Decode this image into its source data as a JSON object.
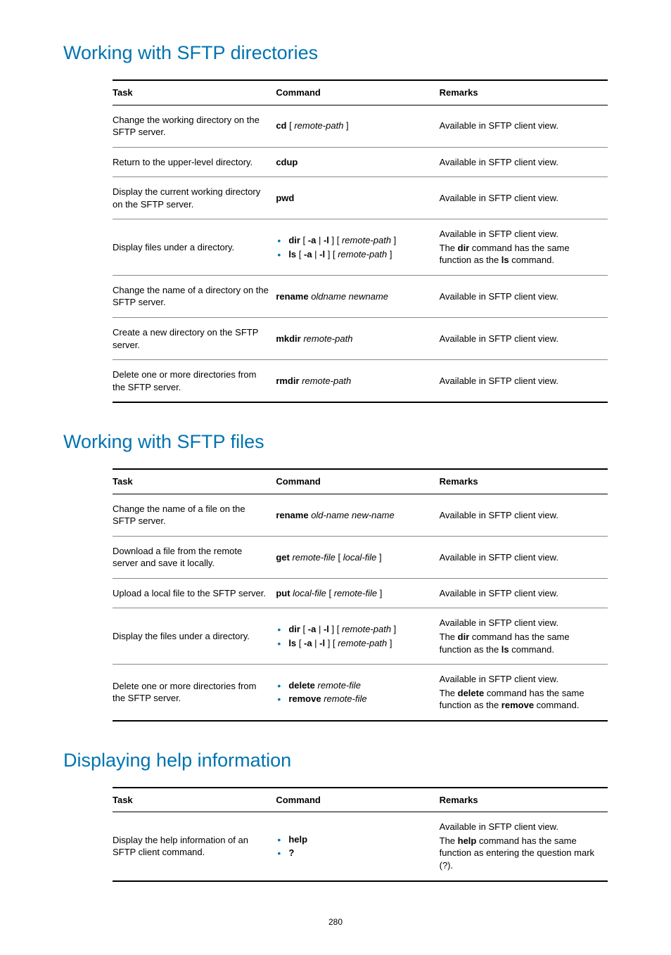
{
  "page_number": "280",
  "sections": [
    {
      "id": "s1",
      "heading": "Working with SFTP directories",
      "headers": [
        "Task",
        "Command",
        "Remarks"
      ],
      "rows": [
        {
          "task": [
            {
              "t": "plain",
              "v": "Change the working directory on the SFTP server."
            }
          ],
          "command": [
            {
              "t": "cmd",
              "segs": [
                {
                  "b": true,
                  "v": "cd"
                },
                {
                  "b": false,
                  "v": " [ "
                },
                {
                  "i": true,
                  "v": "remote-path"
                },
                {
                  "b": false,
                  "v": " ]"
                }
              ]
            }
          ],
          "remarks": [
            {
              "t": "plain",
              "v": "Available in SFTP client view."
            }
          ]
        },
        {
          "task": [
            {
              "t": "plain",
              "v": "Return to the upper-level directory."
            }
          ],
          "command": [
            {
              "t": "cmd",
              "segs": [
                {
                  "b": true,
                  "v": "cdup"
                }
              ]
            }
          ],
          "remarks": [
            {
              "t": "plain",
              "v": "Available in SFTP client view."
            }
          ]
        },
        {
          "task": [
            {
              "t": "plain",
              "v": "Display the current working directory on the SFTP server."
            }
          ],
          "command": [
            {
              "t": "cmd",
              "segs": [
                {
                  "b": true,
                  "v": "pwd"
                }
              ]
            }
          ],
          "remarks": [
            {
              "t": "plain",
              "v": "Available in SFTP client view."
            }
          ]
        },
        {
          "task": [
            {
              "t": "plain",
              "v": "Display files under a directory."
            }
          ],
          "command": [
            {
              "t": "bullets",
              "items": [
                {
                  "segs": [
                    {
                      "b": true,
                      "v": "dir"
                    },
                    {
                      "b": false,
                      "v": " [ "
                    },
                    {
                      "b": true,
                      "v": "-a"
                    },
                    {
                      "b": false,
                      "v": " | "
                    },
                    {
                      "b": true,
                      "v": "-l"
                    },
                    {
                      "b": false,
                      "v": " ] [ "
                    },
                    {
                      "i": true,
                      "v": "remote-path"
                    },
                    {
                      "b": false,
                      "v": " ]"
                    }
                  ]
                },
                {
                  "segs": [
                    {
                      "b": true,
                      "v": "ls"
                    },
                    {
                      "b": false,
                      "v": " [ "
                    },
                    {
                      "b": true,
                      "v": "-a"
                    },
                    {
                      "b": false,
                      "v": " | "
                    },
                    {
                      "b": true,
                      "v": "-l"
                    },
                    {
                      "b": false,
                      "v": " ] [ "
                    },
                    {
                      "i": true,
                      "v": "remote-path"
                    },
                    {
                      "b": false,
                      "v": " ]"
                    }
                  ]
                }
              ]
            }
          ],
          "remarks": [
            {
              "t": "plain",
              "v": "Available in SFTP client view."
            },
            {
              "t": "rich",
              "segs": [
                {
                  "v": "The "
                },
                {
                  "b": true,
                  "v": "dir"
                },
                {
                  "v": " command has the same function as the "
                },
                {
                  "b": true,
                  "v": "ls"
                },
                {
                  "v": " command."
                }
              ]
            }
          ]
        },
        {
          "task": [
            {
              "t": "plain",
              "v": "Change the name of a directory on the SFTP server."
            }
          ],
          "command": [
            {
              "t": "cmd",
              "segs": [
                {
                  "b": true,
                  "v": "rename"
                },
                {
                  "b": false,
                  "v": " "
                },
                {
                  "i": true,
                  "v": "oldname newname"
                }
              ]
            }
          ],
          "remarks": [
            {
              "t": "plain",
              "v": "Available in SFTP client view."
            }
          ]
        },
        {
          "task": [
            {
              "t": "plain",
              "v": "Create a new directory on the SFTP server."
            }
          ],
          "command": [
            {
              "t": "cmd",
              "segs": [
                {
                  "b": true,
                  "v": "mkdir"
                },
                {
                  "b": false,
                  "v": " "
                },
                {
                  "i": true,
                  "v": "remote-path"
                }
              ]
            }
          ],
          "remarks": [
            {
              "t": "plain",
              "v": "Available in SFTP client view."
            }
          ]
        },
        {
          "task": [
            {
              "t": "plain",
              "v": "Delete one or more directories from the SFTP server."
            }
          ],
          "command": [
            {
              "t": "cmd",
              "segs": [
                {
                  "b": true,
                  "v": "rmdir"
                },
                {
                  "b": false,
                  "v": " "
                },
                {
                  "i": true,
                  "v": "remote-path"
                }
              ]
            }
          ],
          "remarks": [
            {
              "t": "plain",
              "v": "Available in SFTP client view."
            }
          ]
        }
      ]
    },
    {
      "id": "s2",
      "heading": "Working with SFTP files",
      "headers": [
        "Task",
        "Command",
        "Remarks"
      ],
      "rows": [
        {
          "task": [
            {
              "t": "plain",
              "v": "Change the name of a file on the SFTP server."
            }
          ],
          "command": [
            {
              "t": "cmd",
              "segs": [
                {
                  "b": true,
                  "v": "rename"
                },
                {
                  "b": false,
                  "v": " "
                },
                {
                  "i": true,
                  "v": "old-name new-name"
                }
              ]
            }
          ],
          "remarks": [
            {
              "t": "plain",
              "v": "Available in SFTP client view."
            }
          ]
        },
        {
          "task": [
            {
              "t": "plain",
              "v": "Download a file from the remote server and save it locally."
            }
          ],
          "command": [
            {
              "t": "cmd",
              "segs": [
                {
                  "b": true,
                  "v": "get"
                },
                {
                  "b": false,
                  "v": " "
                },
                {
                  "i": true,
                  "v": "remote-file"
                },
                {
                  "b": false,
                  "v": " [ "
                },
                {
                  "i": true,
                  "v": "local-file"
                },
                {
                  "b": false,
                  "v": " ]"
                }
              ]
            }
          ],
          "remarks": [
            {
              "t": "plain",
              "v": "Available in SFTP client view."
            }
          ]
        },
        {
          "task": [
            {
              "t": "plain",
              "v": "Upload a local file to the SFTP server."
            }
          ],
          "command": [
            {
              "t": "cmd",
              "segs": [
                {
                  "b": true,
                  "v": "put"
                },
                {
                  "b": false,
                  "v": " "
                },
                {
                  "i": true,
                  "v": "local-file"
                },
                {
                  "b": false,
                  "v": " [ "
                },
                {
                  "i": true,
                  "v": "remote-file"
                },
                {
                  "b": false,
                  "v": " ]"
                }
              ]
            }
          ],
          "remarks": [
            {
              "t": "plain",
              "v": "Available in SFTP client view."
            }
          ]
        },
        {
          "task": [
            {
              "t": "plain",
              "v": "Display the files under a directory."
            }
          ],
          "command": [
            {
              "t": "bullets",
              "items": [
                {
                  "segs": [
                    {
                      "b": true,
                      "v": "dir"
                    },
                    {
                      "b": false,
                      "v": " [ "
                    },
                    {
                      "b": true,
                      "v": "-a"
                    },
                    {
                      "b": false,
                      "v": " | "
                    },
                    {
                      "b": true,
                      "v": "-l"
                    },
                    {
                      "b": false,
                      "v": " ] [ "
                    },
                    {
                      "i": true,
                      "v": "remote-path"
                    },
                    {
                      "b": false,
                      "v": " ]"
                    }
                  ]
                },
                {
                  "segs": [
                    {
                      "b": true,
                      "v": "ls"
                    },
                    {
                      "b": false,
                      "v": " [ "
                    },
                    {
                      "b": true,
                      "v": "-a"
                    },
                    {
                      "b": false,
                      "v": " | "
                    },
                    {
                      "b": true,
                      "v": "-l"
                    },
                    {
                      "b": false,
                      "v": " ] [ "
                    },
                    {
                      "i": true,
                      "v": "remote-path"
                    },
                    {
                      "b": false,
                      "v": " ]"
                    }
                  ]
                }
              ]
            }
          ],
          "remarks": [
            {
              "t": "plain",
              "v": "Available in SFTP client view."
            },
            {
              "t": "rich",
              "segs": [
                {
                  "v": "The "
                },
                {
                  "b": true,
                  "v": "dir"
                },
                {
                  "v": " command has the same function as the "
                },
                {
                  "b": true,
                  "v": "ls"
                },
                {
                  "v": " command."
                }
              ]
            }
          ]
        },
        {
          "task": [
            {
              "t": "plain",
              "v": "Delete one or more directories from the SFTP server."
            }
          ],
          "command": [
            {
              "t": "bullets",
              "items": [
                {
                  "segs": [
                    {
                      "b": true,
                      "v": "delete"
                    },
                    {
                      "b": false,
                      "v": " "
                    },
                    {
                      "i": true,
                      "v": "remote-file"
                    }
                  ]
                },
                {
                  "segs": [
                    {
                      "b": true,
                      "v": "remove"
                    },
                    {
                      "b": false,
                      "v": " "
                    },
                    {
                      "i": true,
                      "v": "remote-file"
                    }
                  ]
                }
              ]
            }
          ],
          "remarks": [
            {
              "t": "plain",
              "v": "Available in SFTP client view."
            },
            {
              "t": "rich",
              "segs": [
                {
                  "v": "The "
                },
                {
                  "b": true,
                  "v": "delete"
                },
                {
                  "v": " command has the same function as the "
                },
                {
                  "b": true,
                  "v": "remove"
                },
                {
                  "v": " command."
                }
              ]
            }
          ]
        }
      ]
    },
    {
      "id": "s3",
      "heading": "Displaying help information",
      "headers": [
        "Task",
        "Command",
        "Remarks"
      ],
      "rows": [
        {
          "task": [
            {
              "t": "plain",
              "v": "Display the help information of an SFTP client command."
            }
          ],
          "command": [
            {
              "t": "bullets",
              "items": [
                {
                  "segs": [
                    {
                      "b": true,
                      "v": "help"
                    }
                  ]
                },
                {
                  "segs": [
                    {
                      "b": true,
                      "v": "?"
                    }
                  ]
                }
              ]
            }
          ],
          "remarks": [
            {
              "t": "plain",
              "v": "Available in SFTP client view."
            },
            {
              "t": "rich",
              "segs": [
                {
                  "v": "The "
                },
                {
                  "b": true,
                  "v": "help"
                },
                {
                  "v": " command has the same function as entering the question mark (?)."
                }
              ]
            }
          ]
        }
      ]
    }
  ]
}
